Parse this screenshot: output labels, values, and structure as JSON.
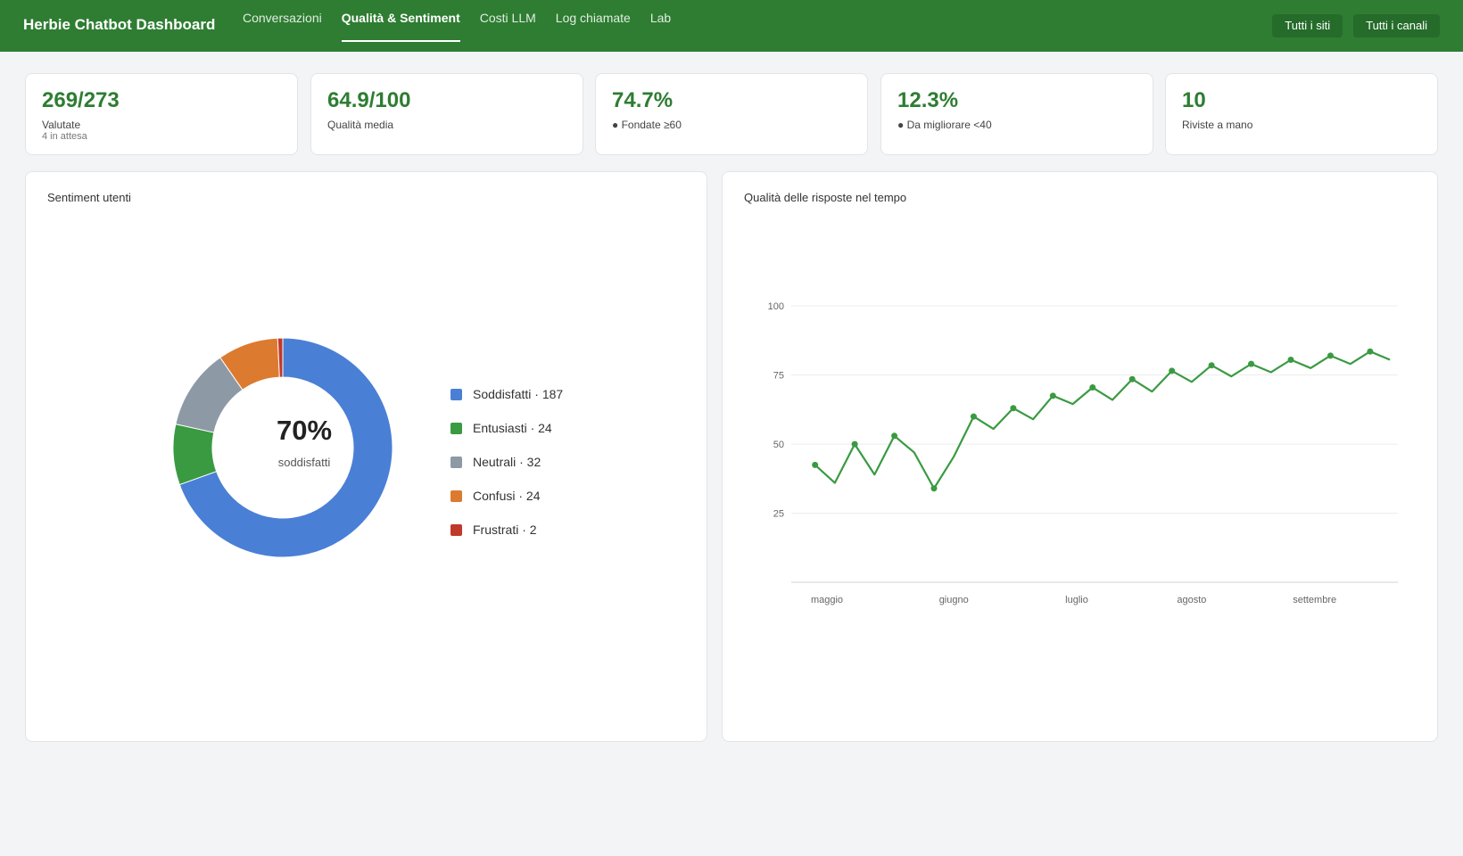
{
  "app": {
    "title": "Herbie Chatbot Dashboard"
  },
  "nav": {
    "tabs": [
      {
        "label": "Conversazioni",
        "active": false
      },
      {
        "label": "Qualità & Sentiment",
        "active": true
      },
      {
        "label": "Costi LLM",
        "active": false
      },
      {
        "label": "Log chiamate",
        "active": false
      },
      {
        "label": "Lab",
        "active": false
      }
    ]
  },
  "filters": {
    "sites": "Tutti i siti",
    "channels": "Tutti i canali"
  },
  "kpis": [
    {
      "value": "269/273",
      "label": "Valutate",
      "sub": "4 in attesa"
    },
    {
      "value": "64.9/100",
      "label": "Qualità media",
      "sub": ""
    },
    {
      "value": "74.7%",
      "label": "● Fondate ≥60",
      "sub": ""
    },
    {
      "value": "12.3%",
      "label": "● Da migliorare <40",
      "sub": ""
    },
    {
      "value": "10",
      "label": "Riviste a mano",
      "sub": ""
    }
  ],
  "sentiment": {
    "title": "Sentiment utenti",
    "center_value": "70%",
    "center_label": "soddisfatti",
    "legend": [
      {
        "label": "Soddisfatti · 187",
        "color": "#4a7fd6"
      },
      {
        "label": "Entusiasti · 24",
        "color": "#3a9a42"
      },
      {
        "label": "Neutrali · 32",
        "color": "#8e99a6"
      },
      {
        "label": "Confusi · 24",
        "color": "#dc7a30"
      },
      {
        "label": "Frustrati · 2",
        "color": "#c0392b"
      }
    ]
  },
  "quality": {
    "title": "Qualità delle risposte nel tempo"
  },
  "chart_data": [
    {
      "type": "pie",
      "donut": true,
      "title": "Sentiment utenti",
      "labels": [
        "Soddisfatti",
        "Entusiasti",
        "Neutrali",
        "Confusi",
        "Frustrati"
      ],
      "values": [
        187,
        24,
        32,
        24,
        2
      ],
      "colors": [
        "#4a7fd6",
        "#3a9a42",
        "#8e99a6",
        "#dc7a30",
        "#c0392b"
      ],
      "legend": "right"
    },
    {
      "type": "line",
      "title": "Qualità delle risposte nel tempo",
      "xlabel": "",
      "ylabel": "",
      "x": [
        "2025-05-01",
        "2025-05-06",
        "2025-05-11",
        "2025-05-16",
        "2025-05-21",
        "2025-05-26",
        "2025-05-31",
        "2025-06-05",
        "2025-06-10",
        "2025-06-15",
        "2025-06-20",
        "2025-06-25",
        "2025-06-30",
        "2025-07-05",
        "2025-07-10",
        "2025-07-15",
        "2025-07-20",
        "2025-07-25",
        "2025-07-30",
        "2025-08-04",
        "2025-08-09",
        "2025-08-14",
        "2025-08-19",
        "2025-08-24",
        "2025-08-29",
        "2025-09-03",
        "2025-09-08",
        "2025-09-13",
        "2025-09-18",
        "2025-09-23"
      ],
      "series": [
        {
          "values": [
            42.5,
            36,
            50,
            39,
            53,
            47,
            34,
            45.5,
            60,
            55.5,
            63,
            59,
            67.5,
            64.5,
            70.5,
            66,
            73.5,
            69,
            76.5,
            72.5,
            78.5,
            74.5,
            79,
            76,
            80.5,
            77.5,
            82,
            79,
            83.5,
            80.5
          ],
          "color": "#3a9a42"
        }
      ],
      "x_ticks": [
        "maggio",
        "giugno",
        "luglio",
        "agosto",
        "settembre"
      ],
      "y_ticks": [
        25,
        50,
        75,
        100
      ],
      "ylim": [
        12,
        100
      ],
      "grid": true,
      "legend": "none"
    }
  ]
}
